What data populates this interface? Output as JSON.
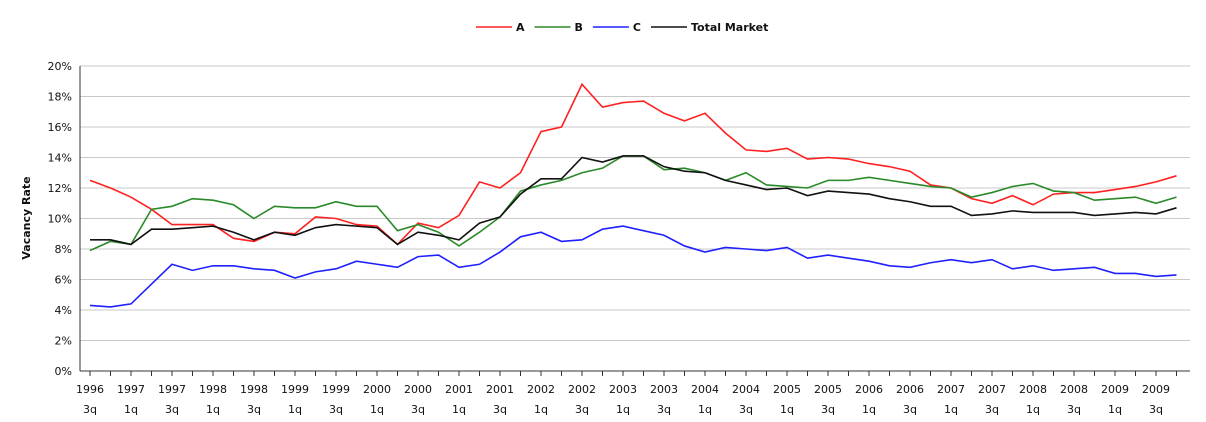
{
  "chart_data": {
    "type": "line",
    "y_label": "Vacancy Rate",
    "categories": [
      "1996 3q",
      null,
      "1997 1q",
      null,
      "1997 3q",
      null,
      "1998 1q",
      null,
      "1998 3q",
      null,
      "1999 1q",
      null,
      "1999 3q",
      null,
      "2000 1q",
      null,
      "2000 3q",
      null,
      "2001 1q",
      null,
      "2001 3q",
      null,
      "2002 1q",
      null,
      "2002 3q",
      null,
      "2003 1q",
      null,
      "2003 3q",
      null,
      "2004 1q",
      null,
      "2004 3q",
      null,
      "2005 1q",
      null,
      "2005 3q",
      null,
      "2006 1q",
      null,
      "2006 3q",
      null,
      "2007 1q",
      null,
      "2007 3q",
      null,
      "2008 1q",
      null,
      "2008 3q",
      null,
      "2009 1q",
      null,
      "2009 3q",
      null
    ],
    "series": [
      {
        "name": "A",
        "color": "#ff2020",
        "values": [
          12.5,
          12.0,
          11.4,
          10.6,
          9.6,
          9.6,
          9.6,
          8.7,
          8.5,
          9.1,
          9.0,
          10.1,
          10.0,
          9.6,
          9.5,
          8.3,
          9.7,
          9.4,
          10.2,
          12.4,
          12.0,
          13.0,
          15.7,
          16.0,
          18.8,
          17.3,
          17.6,
          17.7,
          16.9,
          16.4,
          16.9,
          15.6,
          14.5,
          14.4,
          14.6,
          13.9,
          14.0,
          13.9,
          13.6,
          13.4,
          13.1,
          12.2,
          12.0,
          11.3,
          11.0,
          11.5,
          10.9,
          11.6,
          11.7,
          11.7,
          11.9,
          12.1,
          12.4,
          12.8
        ]
      },
      {
        "name": "B",
        "color": "#2a8a2a",
        "values": [
          7.9,
          8.5,
          8.3,
          10.6,
          10.8,
          11.3,
          11.2,
          10.9,
          10.0,
          10.8,
          10.7,
          10.7,
          11.1,
          10.8,
          10.8,
          9.2,
          9.6,
          9.1,
          8.2,
          9.1,
          10.1,
          11.8,
          12.2,
          12.5,
          13.0,
          13.3,
          14.1,
          14.1,
          13.2,
          13.3,
          13.0,
          12.5,
          13.0,
          12.2,
          12.1,
          12.0,
          12.5,
          12.5,
          12.7,
          12.5,
          12.3,
          12.1,
          12.0,
          11.4,
          11.7,
          12.1,
          12.3,
          11.8,
          11.7,
          11.2,
          11.3,
          11.4,
          11.0,
          11.4
        ]
      },
      {
        "name": "C",
        "color": "#2020ff",
        "values": [
          4.3,
          4.2,
          4.4,
          5.7,
          7.0,
          6.6,
          6.9,
          6.9,
          6.7,
          6.6,
          6.1,
          6.5,
          6.7,
          7.2,
          7.0,
          6.8,
          7.5,
          7.6,
          6.8,
          7.0,
          7.8,
          8.8,
          9.1,
          8.5,
          8.6,
          9.3,
          9.5,
          9.2,
          8.9,
          8.2,
          7.8,
          8.1,
          8.0,
          7.9,
          8.1,
          7.4,
          7.6,
          7.4,
          7.2,
          6.9,
          6.8,
          7.1,
          7.3,
          7.1,
          7.3,
          6.7,
          6.9,
          6.6,
          6.7,
          6.8,
          6.4,
          6.4,
          6.2,
          6.3
        ]
      },
      {
        "name": "Total Market",
        "color": "#111111",
        "values": [
          8.6,
          8.6,
          8.3,
          9.3,
          9.3,
          9.4,
          9.5,
          9.1,
          8.6,
          9.1,
          8.9,
          9.4,
          9.6,
          9.5,
          9.4,
          8.3,
          9.1,
          8.9,
          8.6,
          9.7,
          10.1,
          11.6,
          12.6,
          12.6,
          14.0,
          13.7,
          14.1,
          14.1,
          13.4,
          13.1,
          13.0,
          12.5,
          12.2,
          11.9,
          12.0,
          11.5,
          11.8,
          11.7,
          11.6,
          11.3,
          11.1,
          10.8,
          10.8,
          10.2,
          10.3,
          10.5,
          10.4,
          10.4,
          10.4,
          10.2,
          10.3,
          10.4,
          10.3,
          10.7
        ]
      }
    ],
    "ylim": [
      0,
      20
    ],
    "yticks": [
      {
        "value": 0,
        "label": "0%"
      },
      {
        "value": 2,
        "label": "2%"
      },
      {
        "value": 4,
        "label": "4%"
      },
      {
        "value": 6,
        "label": "6%"
      },
      {
        "value": 8,
        "label": "8%"
      },
      {
        "value": 10,
        "label": "10%"
      },
      {
        "value": 12,
        "label": "12%"
      },
      {
        "value": 14,
        "label": "14%"
      },
      {
        "value": 16,
        "label": "16%"
      },
      {
        "value": 18,
        "label": "18%"
      },
      {
        "value": 20,
        "label": "20%"
      }
    ],
    "grid": true,
    "legend": "top"
  }
}
